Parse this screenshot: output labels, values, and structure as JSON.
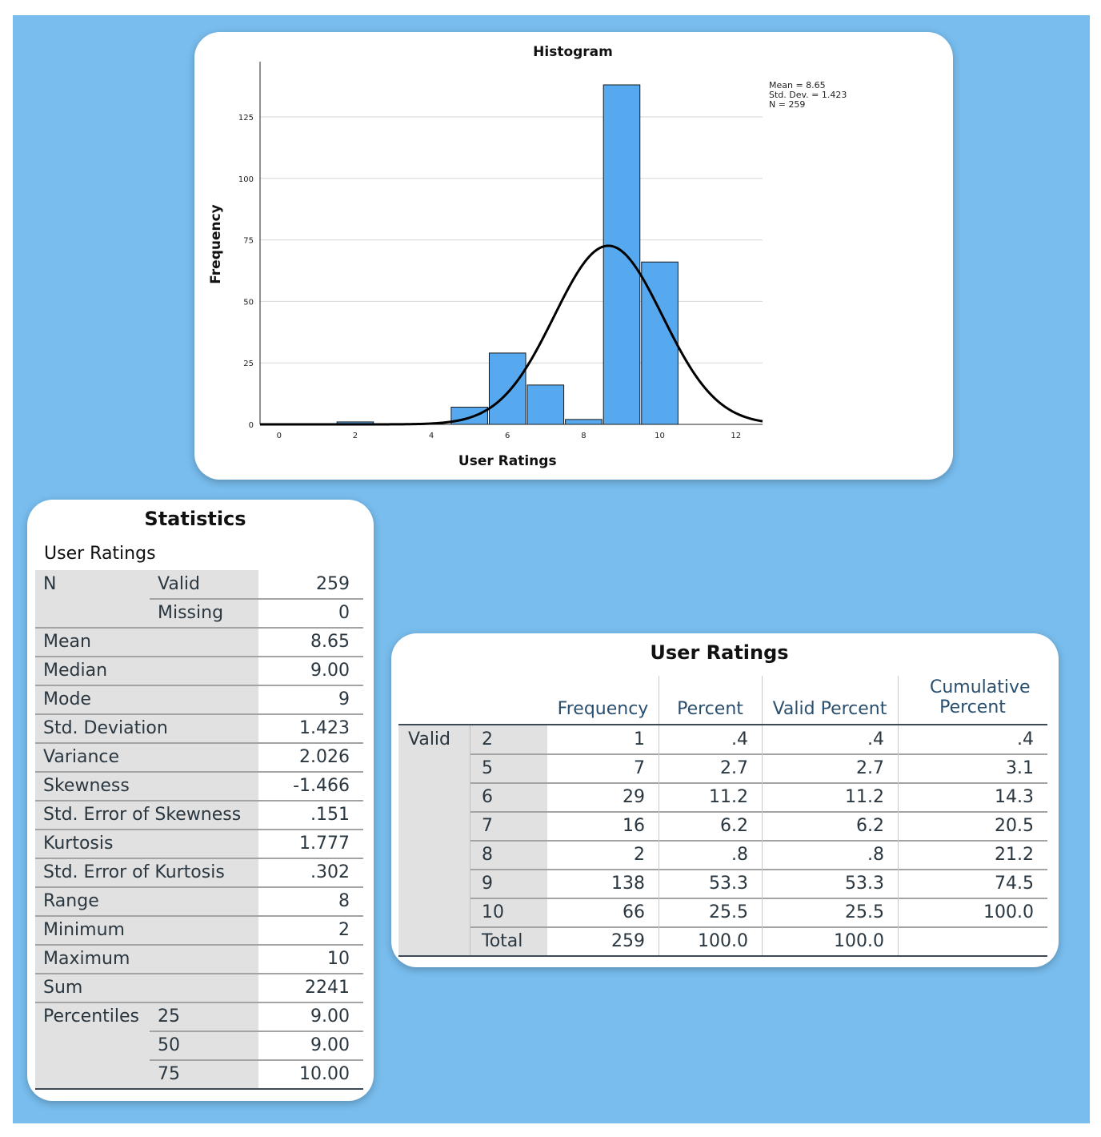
{
  "colors": {
    "background": "#78bdee",
    "bar_fill": "#56a8ef",
    "bar_stroke": "#1a1a1a",
    "curve": "#000000"
  },
  "chart_data": {
    "type": "bar",
    "title": "Histogram",
    "xlabel": "User Ratings",
    "ylabel": "Frequency",
    "xlim": [
      -0.5,
      12.7
    ],
    "ylim": [
      0,
      138
    ],
    "xticks": [
      "0",
      "2",
      "4",
      "6",
      "8",
      "10",
      "12"
    ],
    "yticks": [
      "0",
      "25",
      "50",
      "75",
      "100",
      "125"
    ],
    "grid": true,
    "bins": [
      {
        "x": 2,
        "value": 1
      },
      {
        "x": 3,
        "value": 0
      },
      {
        "x": 5,
        "value": 7
      },
      {
        "x": 6,
        "value": 29
      },
      {
        "x": 7,
        "value": 16
      },
      {
        "x": 8,
        "value": 2
      },
      {
        "x": 9,
        "value": 138
      },
      {
        "x": 10,
        "value": 66
      }
    ],
    "normal_curve": {
      "mean": 8.65,
      "std_dev": 1.423,
      "n": 259,
      "bin_width": 1
    },
    "legend_position": "top-right",
    "stats_text": [
      "Mean = 8.65",
      "Std. Dev. = 1.423",
      "N = 259"
    ]
  },
  "statistics": {
    "title": "Statistics",
    "variable": "User Ratings",
    "rows": [
      {
        "label": "N",
        "sub": "Valid",
        "value": "259"
      },
      {
        "label": "",
        "sub": "Missing",
        "value": "0"
      },
      {
        "label": "Mean",
        "sub": "",
        "value": "8.65"
      },
      {
        "label": "Median",
        "sub": "",
        "value": "9.00"
      },
      {
        "label": "Mode",
        "sub": "",
        "value": "9"
      },
      {
        "label": "Std. Deviation",
        "sub": "",
        "value": "1.423"
      },
      {
        "label": "Variance",
        "sub": "",
        "value": "2.026"
      },
      {
        "label": "Skewness",
        "sub": "",
        "value": "-1.466"
      },
      {
        "label": "Std. Error of Skewness",
        "sub": "",
        "value": ".151"
      },
      {
        "label": "Kurtosis",
        "sub": "",
        "value": "1.777"
      },
      {
        "label": "Std. Error of Kurtosis",
        "sub": "",
        "value": ".302"
      },
      {
        "label": "Range",
        "sub": "",
        "value": "8"
      },
      {
        "label": "Minimum",
        "sub": "",
        "value": "2"
      },
      {
        "label": "Maximum",
        "sub": "",
        "value": "10"
      },
      {
        "label": "Sum",
        "sub": "",
        "value": "2241"
      },
      {
        "label": "Percentiles",
        "sub": "25",
        "value": "9.00"
      },
      {
        "label": "",
        "sub": "50",
        "value": "9.00"
      },
      {
        "label": "",
        "sub": "75",
        "value": "10.00"
      }
    ]
  },
  "frequency_table": {
    "title": "User Ratings",
    "group_label": "Valid",
    "columns": [
      "Frequency",
      "Percent",
      "Valid Percent",
      "Cumulative Percent"
    ],
    "rows": [
      {
        "value": "2",
        "frequency": "1",
        "percent": ".4",
        "valid_percent": ".4",
        "cumulative_percent": ".4"
      },
      {
        "value": "5",
        "frequency": "7",
        "percent": "2.7",
        "valid_percent": "2.7",
        "cumulative_percent": "3.1"
      },
      {
        "value": "6",
        "frequency": "29",
        "percent": "11.2",
        "valid_percent": "11.2",
        "cumulative_percent": "14.3"
      },
      {
        "value": "7",
        "frequency": "16",
        "percent": "6.2",
        "valid_percent": "6.2",
        "cumulative_percent": "20.5"
      },
      {
        "value": "8",
        "frequency": "2",
        "percent": ".8",
        "valid_percent": ".8",
        "cumulative_percent": "21.2"
      },
      {
        "value": "9",
        "frequency": "138",
        "percent": "53.3",
        "valid_percent": "53.3",
        "cumulative_percent": "74.5"
      },
      {
        "value": "10",
        "frequency": "66",
        "percent": "25.5",
        "valid_percent": "25.5",
        "cumulative_percent": "100.0"
      },
      {
        "value": "Total",
        "frequency": "259",
        "percent": "100.0",
        "valid_percent": "100.0",
        "cumulative_percent": ""
      }
    ]
  }
}
